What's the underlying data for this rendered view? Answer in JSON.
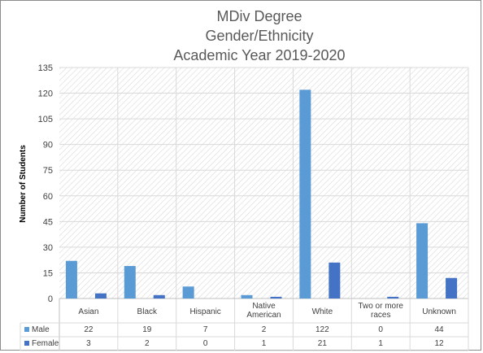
{
  "chart_data": {
    "type": "bar",
    "title": [
      "MDiv Degree",
      "Gender/Ethnicity",
      "Academic Year 2019-2020"
    ],
    "ylabel": "Number of Students",
    "ylim": [
      0,
      135
    ],
    "yticks": [
      0,
      15,
      30,
      45,
      60,
      75,
      90,
      105,
      120,
      135
    ],
    "categories": [
      [
        "Asian"
      ],
      [
        "Black"
      ],
      [
        "Hispanic"
      ],
      [
        "Native",
        "American"
      ],
      [
        "White"
      ],
      [
        "Two or more",
        "races"
      ],
      [
        "Unknown"
      ]
    ],
    "series": [
      {
        "name": "Male",
        "color": "#5b9bd5",
        "values": [
          22,
          19,
          7,
          2,
          122,
          0,
          44
        ]
      },
      {
        "name": "Female",
        "color": "#4472c4",
        "values": [
          3,
          2,
          0,
          1,
          21,
          1,
          12
        ]
      }
    ],
    "grid": true,
    "legend": "data-table"
  }
}
